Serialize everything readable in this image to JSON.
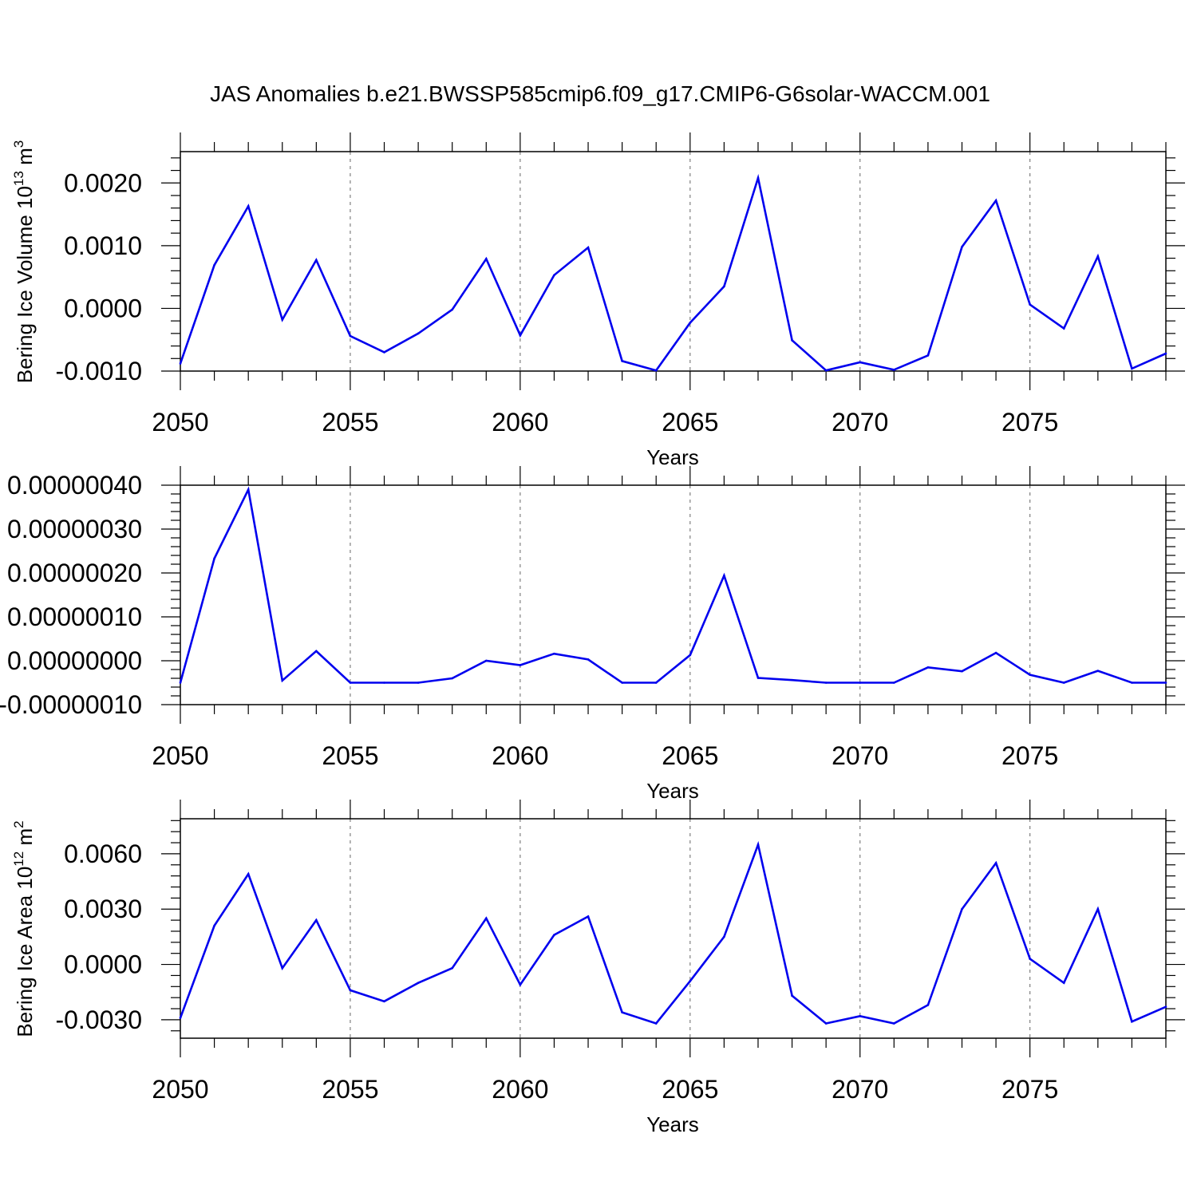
{
  "title": "JAS Anomalies b.e21.BWSSP585cmip6.f09_g17.CMIP6-G6solar-WACCM.001",
  "colors": {
    "line": "#0000ee",
    "axis": "#000000",
    "grid": "#808080"
  },
  "chart_data": [
    {
      "type": "line",
      "title": "",
      "xlabel": "Years",
      "ylabel": "Bering Ice Volume 10",
      "ylabel_sup": "13",
      "ylabel_unit": "m",
      "ylabel_unit_sup": "3",
      "xlim": [
        2050,
        2079
      ],
      "ylim": [
        -0.001,
        0.0025
      ],
      "x_ticks": [
        2050,
        2055,
        2060,
        2065,
        2070,
        2075
      ],
      "x_tick_labels": [
        "2050",
        "2055",
        "2060",
        "2065",
        "2070",
        "2075"
      ],
      "y_ticks": [
        -0.001,
        0.0,
        0.001,
        0.002
      ],
      "y_tick_labels": [
        "-0.0010",
        "0.0000",
        "0.0010",
        "0.0020"
      ],
      "grid": "vertical dashed at major x ticks",
      "x": [
        2050,
        2051,
        2052,
        2053,
        2054,
        2055,
        2056,
        2057,
        2058,
        2059,
        2060,
        2061,
        2062,
        2063,
        2064,
        2065,
        2066,
        2067,
        2068,
        2069,
        2070,
        2071,
        2072,
        2073,
        2074,
        2075,
        2076,
        2077,
        2078,
        2079
      ],
      "series": [
        {
          "values": [
            -0.00088,
            0.00069,
            0.00163,
            -0.00018,
            0.00077,
            -0.00044,
            -0.0007,
            -0.0004,
            -2e-05,
            0.00079,
            -0.00043,
            0.00053,
            0.00097,
            -0.00084,
            -0.00099,
            -0.00023,
            0.00035,
            0.00208,
            -0.00051,
            -0.00099,
            -0.00086,
            -0.00098,
            -0.00075,
            0.00098,
            0.00172,
            6e-05,
            -0.00032,
            0.00083,
            -0.00096,
            -0.00072
          ]
        }
      ]
    },
    {
      "type": "line",
      "title": "",
      "xlabel": "Years",
      "ylabel": "",
      "xlim": [
        2050,
        2079
      ],
      "ylim": [
        -1e-07,
        4e-07
      ],
      "x_ticks": [
        2050,
        2055,
        2060,
        2065,
        2070,
        2075
      ],
      "x_tick_labels": [
        "2050",
        "2055",
        "2060",
        "2065",
        "2070",
        "2075"
      ],
      "y_ticks": [
        -1e-07,
        0.0,
        1e-07,
        2e-07,
        3e-07,
        4e-07
      ],
      "y_tick_labels": [
        "-0.00000010",
        "0.00000000",
        "0.00000010",
        "0.00000020",
        "0.00000030",
        "0.00000040"
      ],
      "grid": "vertical dashed at major x ticks",
      "x": [
        2050,
        2051,
        2052,
        2053,
        2054,
        2055,
        2056,
        2057,
        2058,
        2059,
        2060,
        2061,
        2062,
        2063,
        2064,
        2065,
        2066,
        2067,
        2068,
        2069,
        2070,
        2071,
        2072,
        2073,
        2074,
        2075,
        2076,
        2077,
        2078,
        2079
      ],
      "series": [
        {
          "values": [
            -5e-08,
            2.33e-07,
            3.9e-07,
            -4.5e-08,
            2.2e-08,
            -5e-08,
            -5e-08,
            -5e-08,
            -4e-08,
            0.0,
            -1e-08,
            1.6e-08,
            3e-09,
            -5e-08,
            -5e-08,
            1.3e-08,
            1.94e-07,
            -3.9e-08,
            -4.4e-08,
            -5e-08,
            -5e-08,
            -5e-08,
            -1.5e-08,
            -2.4e-08,
            1.8e-08,
            -3.2e-08,
            -5e-08,
            -2.3e-08,
            -5e-08,
            -5e-08
          ]
        }
      ]
    },
    {
      "type": "line",
      "title": "",
      "xlabel": "Years",
      "ylabel": "Bering Ice Area 10",
      "ylabel_sup": "12",
      "ylabel_unit": "m",
      "ylabel_unit_sup": "2",
      "xlim": [
        2050,
        2079
      ],
      "ylim": [
        -0.004,
        0.0079
      ],
      "x_ticks": [
        2050,
        2055,
        2060,
        2065,
        2070,
        2075
      ],
      "x_tick_labels": [
        "2050",
        "2055",
        "2060",
        "2065",
        "2070",
        "2075"
      ],
      "y_ticks": [
        -0.003,
        0.0,
        0.003,
        0.006
      ],
      "y_tick_labels": [
        "-0.0030",
        "0.0000",
        "0.0030",
        "0.0060"
      ],
      "grid": "vertical dashed at major x ticks",
      "x": [
        2050,
        2051,
        2052,
        2053,
        2054,
        2055,
        2056,
        2057,
        2058,
        2059,
        2060,
        2061,
        2062,
        2063,
        2064,
        2065,
        2066,
        2067,
        2068,
        2069,
        2070,
        2071,
        2072,
        2073,
        2074,
        2075,
        2076,
        2077,
        2078,
        2079
      ],
      "series": [
        {
          "values": [
            -0.0029,
            0.0021,
            0.0049,
            -0.0002,
            0.0024,
            -0.0014,
            -0.002,
            -0.001,
            -0.0002,
            0.0025,
            -0.0011,
            0.0016,
            0.0026,
            -0.0026,
            -0.0032,
            -0.0009,
            0.0015,
            0.0065,
            -0.0017,
            -0.0032,
            -0.0028,
            -0.0032,
            -0.0022,
            0.003,
            0.0055,
            0.0003,
            -0.001,
            0.003,
            -0.0031,
            -0.0023
          ]
        }
      ]
    }
  ]
}
